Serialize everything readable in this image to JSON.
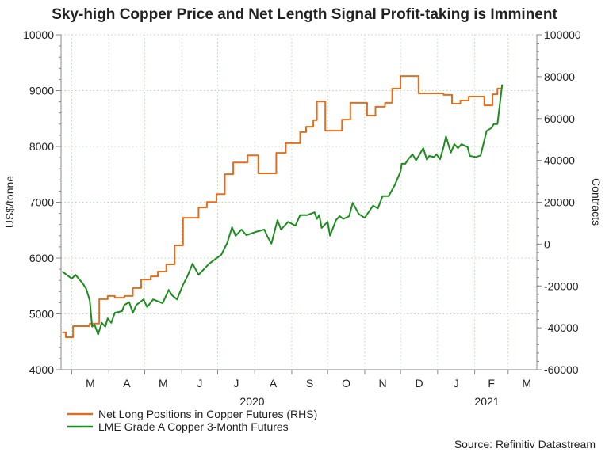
{
  "chart_data": {
    "type": "line",
    "title": "Sky-high Copper Price and Net Length Signal Profit-taking is Imminent",
    "source": "Source: Refinitiv Datastream",
    "ylabel_left": "US$/tonne",
    "ylabel_right": "Contracts",
    "ylim_left": [
      4000,
      10000
    ],
    "ylim_right": [
      -60000,
      100000
    ],
    "yticks_left": [
      "4000",
      "5000",
      "6000",
      "7000",
      "8000",
      "9000",
      "10000"
    ],
    "yticks_right": [
      "-60000",
      "-40000",
      "-20000",
      "0",
      "20000",
      "40000",
      "60000",
      "80000",
      "100000"
    ],
    "xlim": [
      "2020-02-21",
      "2021-03-25"
    ],
    "xticks": [
      "M",
      "A",
      "M",
      "J",
      "J",
      "A",
      "S",
      "O",
      "N",
      "D",
      "J",
      "F",
      "M"
    ],
    "year_labels": [
      "2020",
      "2021"
    ],
    "grid": true,
    "legend_position": "bottom-left",
    "colors": {
      "net_long": "#e07020",
      "lme": "#1e8c1e",
      "grid": "#b8d8b8",
      "axis": "#888888"
    },
    "series": [
      {
        "name": "Net Long Positions in Copper Futures (RHS)",
        "axis": "right",
        "step": true,
        "points": [
          [
            "2020-02-22",
            -42200
          ],
          [
            "2020-02-25",
            -44500
          ],
          [
            "2020-03-02",
            -39200
          ],
          [
            "2020-03-16",
            -38000
          ],
          [
            "2020-03-24",
            -26300
          ],
          [
            "2020-03-31",
            -24800
          ],
          [
            "2020-04-06",
            -25600
          ],
          [
            "2020-04-14",
            -24800
          ],
          [
            "2020-04-21",
            -21000
          ],
          [
            "2020-04-28",
            -16900
          ],
          [
            "2020-05-06",
            -15400
          ],
          [
            "2020-05-12",
            -13100
          ],
          [
            "2020-05-19",
            -9700
          ],
          [
            "2020-05-26",
            -600
          ],
          [
            "2020-06-02",
            12600
          ],
          [
            "2020-06-15",
            17500
          ],
          [
            "2020-06-22",
            20100
          ],
          [
            "2020-06-30",
            23900
          ],
          [
            "2020-07-07",
            33400
          ],
          [
            "2020-07-14",
            39000
          ],
          [
            "2020-07-26",
            42400
          ],
          [
            "2020-08-04",
            33800
          ],
          [
            "2020-08-19",
            43600
          ],
          [
            "2020-08-27",
            48200
          ],
          [
            "2020-09-08",
            53500
          ],
          [
            "2020-09-13",
            56100
          ],
          [
            "2020-09-19",
            59200
          ],
          [
            "2020-09-22",
            68200
          ],
          [
            "2020-09-29",
            54200
          ],
          [
            "2020-10-13",
            59500
          ],
          [
            "2020-10-20",
            67500
          ],
          [
            "2020-11-03",
            61400
          ],
          [
            "2020-11-10",
            65600
          ],
          [
            "2020-11-18",
            67500
          ],
          [
            "2020-11-24",
            74300
          ],
          [
            "2020-12-01",
            80300
          ],
          [
            "2020-12-16",
            72000
          ],
          [
            "2021-01-06",
            71300
          ],
          [
            "2021-01-13",
            67100
          ],
          [
            "2021-01-20",
            68600
          ],
          [
            "2021-01-27",
            70500
          ],
          [
            "2021-02-09",
            66300
          ],
          [
            "2021-02-16",
            71600
          ],
          [
            "2021-02-20",
            74300
          ],
          [
            "2021-02-24",
            74300
          ]
        ]
      },
      {
        "name": "LME Grade A Copper 3-Month Futures",
        "axis": "left",
        "step": false,
        "points": [
          [
            "2020-02-22",
            5760
          ],
          [
            "2020-03-01",
            5630
          ],
          [
            "2020-03-04",
            5700
          ],
          [
            "2020-03-10",
            5550
          ],
          [
            "2020-03-13",
            5450
          ],
          [
            "2020-03-16",
            5240
          ],
          [
            "2020-03-18",
            4770
          ],
          [
            "2020-03-20",
            4810
          ],
          [
            "2020-03-23",
            4630
          ],
          [
            "2020-03-26",
            4840
          ],
          [
            "2020-03-29",
            4770
          ],
          [
            "2020-03-31",
            4920
          ],
          [
            "2020-04-03",
            4840
          ],
          [
            "2020-04-06",
            5020
          ],
          [
            "2020-04-12",
            5050
          ],
          [
            "2020-04-14",
            5160
          ],
          [
            "2020-04-18",
            5210
          ],
          [
            "2020-04-21",
            5020
          ],
          [
            "2020-04-24",
            5160
          ],
          [
            "2020-04-30",
            5260
          ],
          [
            "2020-05-03",
            5120
          ],
          [
            "2020-05-08",
            5260
          ],
          [
            "2020-05-16",
            5190
          ],
          [
            "2020-05-21",
            5430
          ],
          [
            "2020-05-24",
            5330
          ],
          [
            "2020-05-28",
            5260
          ],
          [
            "2020-06-02",
            5520
          ],
          [
            "2020-06-06",
            5690
          ],
          [
            "2020-06-10",
            5900
          ],
          [
            "2020-06-15",
            5700
          ],
          [
            "2020-06-24",
            5900
          ],
          [
            "2020-07-04",
            6060
          ],
          [
            "2020-07-09",
            6270
          ],
          [
            "2020-07-13",
            6550
          ],
          [
            "2020-07-16",
            6400
          ],
          [
            "2020-07-21",
            6510
          ],
          [
            "2020-07-25",
            6410
          ],
          [
            "2020-08-02",
            6470
          ],
          [
            "2020-08-09",
            6510
          ],
          [
            "2020-08-12",
            6370
          ],
          [
            "2020-08-15",
            6260
          ],
          [
            "2020-08-20",
            6680
          ],
          [
            "2020-08-23",
            6510
          ],
          [
            "2020-08-29",
            6650
          ],
          [
            "2020-09-04",
            6580
          ],
          [
            "2020-09-08",
            6770
          ],
          [
            "2020-09-14",
            6770
          ],
          [
            "2020-09-20",
            6820
          ],
          [
            "2020-09-22",
            6700
          ],
          [
            "2020-09-24",
            6770
          ],
          [
            "2020-09-26",
            6540
          ],
          [
            "2020-10-01",
            6650
          ],
          [
            "2020-10-03",
            6400
          ],
          [
            "2020-10-08",
            6680
          ],
          [
            "2020-10-11",
            6750
          ],
          [
            "2020-10-14",
            6700
          ],
          [
            "2020-10-19",
            6750
          ],
          [
            "2020-10-22",
            6990
          ],
          [
            "2020-10-27",
            6790
          ],
          [
            "2020-11-01",
            6720
          ],
          [
            "2020-11-08",
            6940
          ],
          [
            "2020-11-12",
            6890
          ],
          [
            "2020-11-16",
            7110
          ],
          [
            "2020-11-21",
            7110
          ],
          [
            "2020-11-26",
            7300
          ],
          [
            "2020-12-01",
            7550
          ],
          [
            "2020-12-02",
            7690
          ],
          [
            "2020-12-05",
            7690
          ],
          [
            "2020-12-07",
            7760
          ],
          [
            "2020-12-11",
            7860
          ],
          [
            "2020-12-14",
            7750
          ],
          [
            "2020-12-20",
            7970
          ],
          [
            "2020-12-23",
            7760
          ],
          [
            "2020-12-25",
            7830
          ],
          [
            "2020-12-29",
            7810
          ],
          [
            "2020-12-31",
            7860
          ],
          [
            "2021-01-03",
            7770
          ],
          [
            "2021-01-06",
            7990
          ],
          [
            "2021-01-08",
            8180
          ],
          [
            "2021-01-12",
            7890
          ],
          [
            "2021-01-15",
            8040
          ],
          [
            "2021-01-18",
            7970
          ],
          [
            "2021-01-21",
            8040
          ],
          [
            "2021-01-26",
            7990
          ],
          [
            "2021-01-28",
            7830
          ],
          [
            "2021-02-02",
            7810
          ],
          [
            "2021-02-06",
            7840
          ],
          [
            "2021-02-11",
            8280
          ],
          [
            "2021-02-15",
            8330
          ],
          [
            "2021-02-17",
            8400
          ],
          [
            "2021-02-20",
            8400
          ],
          [
            "2021-02-24",
            9110
          ]
        ]
      }
    ]
  }
}
